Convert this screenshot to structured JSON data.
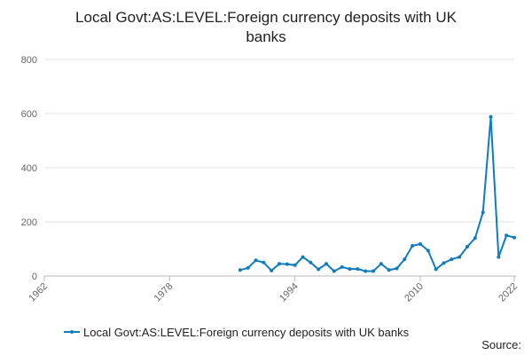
{
  "chart_data": {
    "type": "line",
    "title": [
      "Local Govt:AS:LEVEL:Foreign currency deposits with UK",
      "banks"
    ],
    "x": [
      1987,
      1988,
      1989,
      1990,
      1991,
      1992,
      1993,
      1994,
      1995,
      1996,
      1997,
      1998,
      1999,
      2000,
      2001,
      2002,
      2003,
      2004,
      2005,
      2006,
      2007,
      2008,
      2009,
      2010,
      2011,
      2012,
      2013,
      2014,
      2015,
      2016,
      2017,
      2018,
      2019,
      2020,
      2021,
      2022
    ],
    "series": [
      {
        "name": "Local Govt:AS:LEVEL:Foreign currency deposits with UK banks",
        "color": "#0f7cbf",
        "values": [
          22,
          30,
          58,
          50,
          20,
          45,
          44,
          40,
          70,
          50,
          25,
          45,
          18,
          33,
          26,
          26,
          18,
          18,
          45,
          22,
          28,
          62,
          112,
          118,
          94,
          25,
          48,
          62,
          70,
          108,
          140,
          235,
          588,
          70,
          150,
          142
        ]
      }
    ],
    "xlim": [
      1962,
      2022
    ],
    "xticks": [
      1962,
      1978,
      1994,
      2010,
      2022
    ],
    "ylim": [
      0,
      800
    ],
    "yticks": [
      0,
      200,
      400,
      600,
      800
    ],
    "grid": true,
    "source": "Source:"
  }
}
